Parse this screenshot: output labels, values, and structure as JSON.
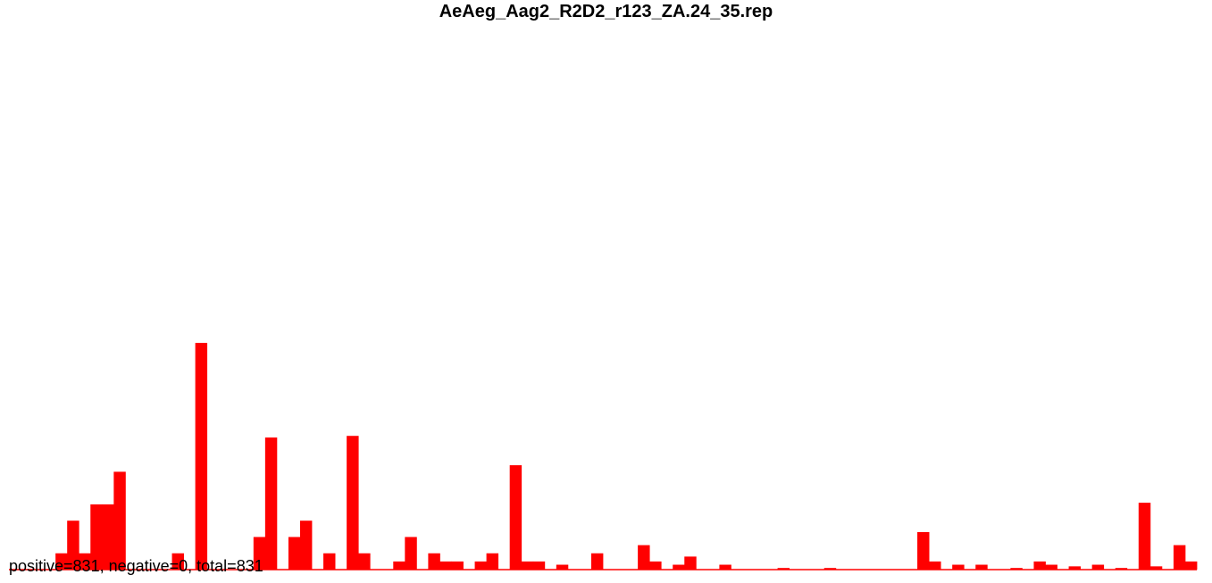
{
  "chart_data": {
    "type": "bar",
    "title": "AeAeg_Aag2_R2D2_r123_ZA.24_35.rep",
    "summary": "positive=831, negative=0, total=831",
    "bar_color": "#ff0000",
    "baseline_color": "#ff0000",
    "negative_color": "#0000ff",
    "grid": false,
    "legend": "none",
    "ylim": [
      0,
      30
    ],
    "series": [
      {
        "values": [
          0,
          0,
          0,
          0,
          1,
          3,
          1,
          4,
          4,
          6,
          0,
          0,
          0,
          0,
          1,
          0,
          13.9,
          0,
          0,
          0,
          0,
          2,
          8.1,
          0,
          2,
          3,
          0,
          1,
          0,
          8.2,
          1,
          0,
          0,
          0.5,
          2,
          0,
          1,
          0.5,
          0.5,
          0,
          0.5,
          1,
          0,
          6.4,
          0.5,
          0.5,
          0,
          0.3,
          0,
          0,
          1,
          0,
          0,
          0,
          1.5,
          0.5,
          0,
          0.3,
          0.8,
          0,
          0,
          0.3,
          0,
          0,
          0,
          0,
          0.1,
          0,
          0,
          0,
          0.1,
          0,
          0,
          0,
          0,
          0,
          0,
          0,
          2.3,
          0.5,
          0,
          0.3,
          0,
          0.3,
          0,
          0,
          0.1,
          0,
          0.5,
          0.3,
          0,
          0.2,
          0,
          0.3,
          0,
          0.1,
          0,
          4.1,
          0.2,
          0,
          1.5,
          0.5
        ]
      }
    ]
  }
}
